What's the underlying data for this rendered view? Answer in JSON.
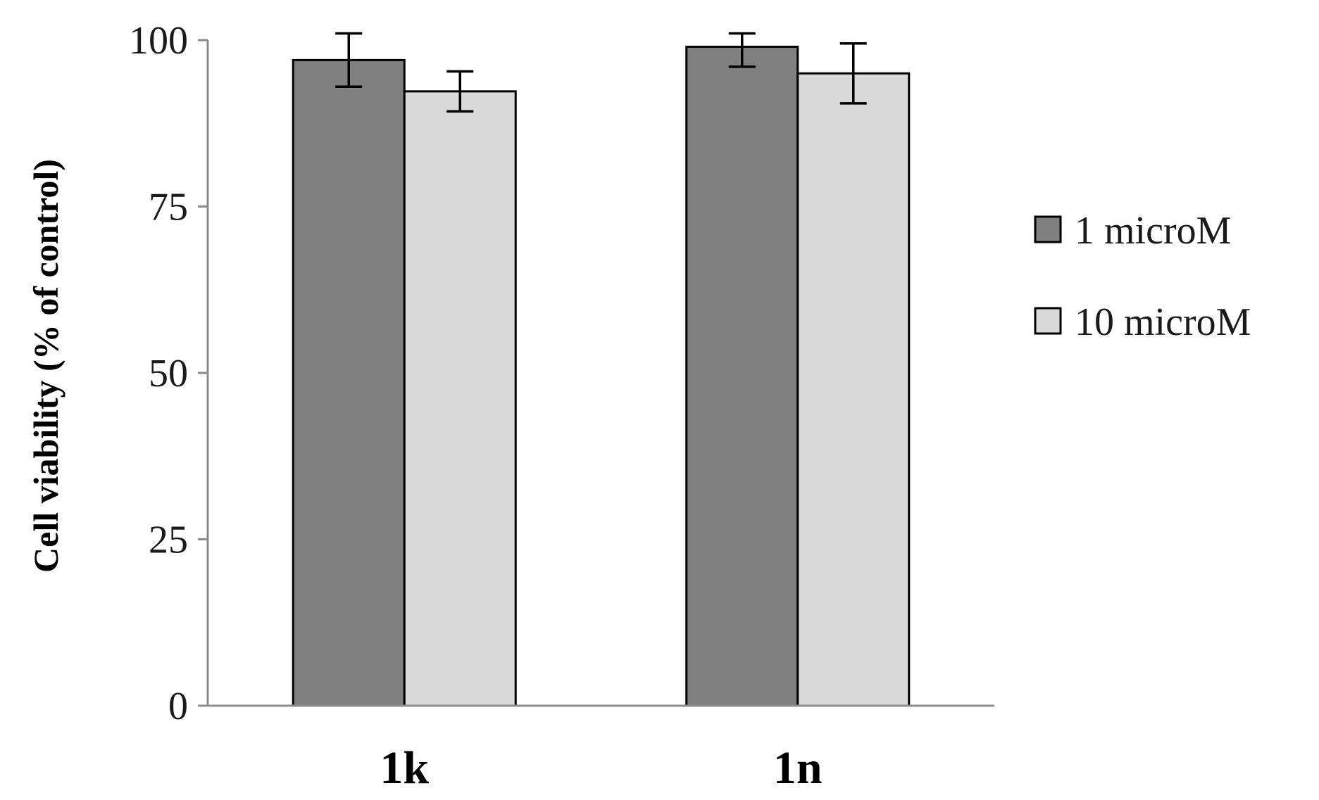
{
  "chart_data": {
    "type": "bar",
    "title": "",
    "xlabel": "",
    "ylabel": "Cell viability (% of control)",
    "categories": [
      "1k",
      "1n"
    ],
    "series": [
      {
        "name": "1 microM",
        "values": [
          97,
          99
        ],
        "errors": [
          4,
          3
        ],
        "color": "#808080"
      },
      {
        "name": "10 microM",
        "values": [
          92.3,
          95
        ],
        "errors": [
          3,
          4.5
        ],
        "color": "#d9d9d9"
      }
    ],
    "ylim": [
      0,
      100
    ],
    "yticks": [
      "0",
      "25",
      "50",
      "75",
      "100"
    ],
    "grid": false,
    "legend_position": "right"
  }
}
